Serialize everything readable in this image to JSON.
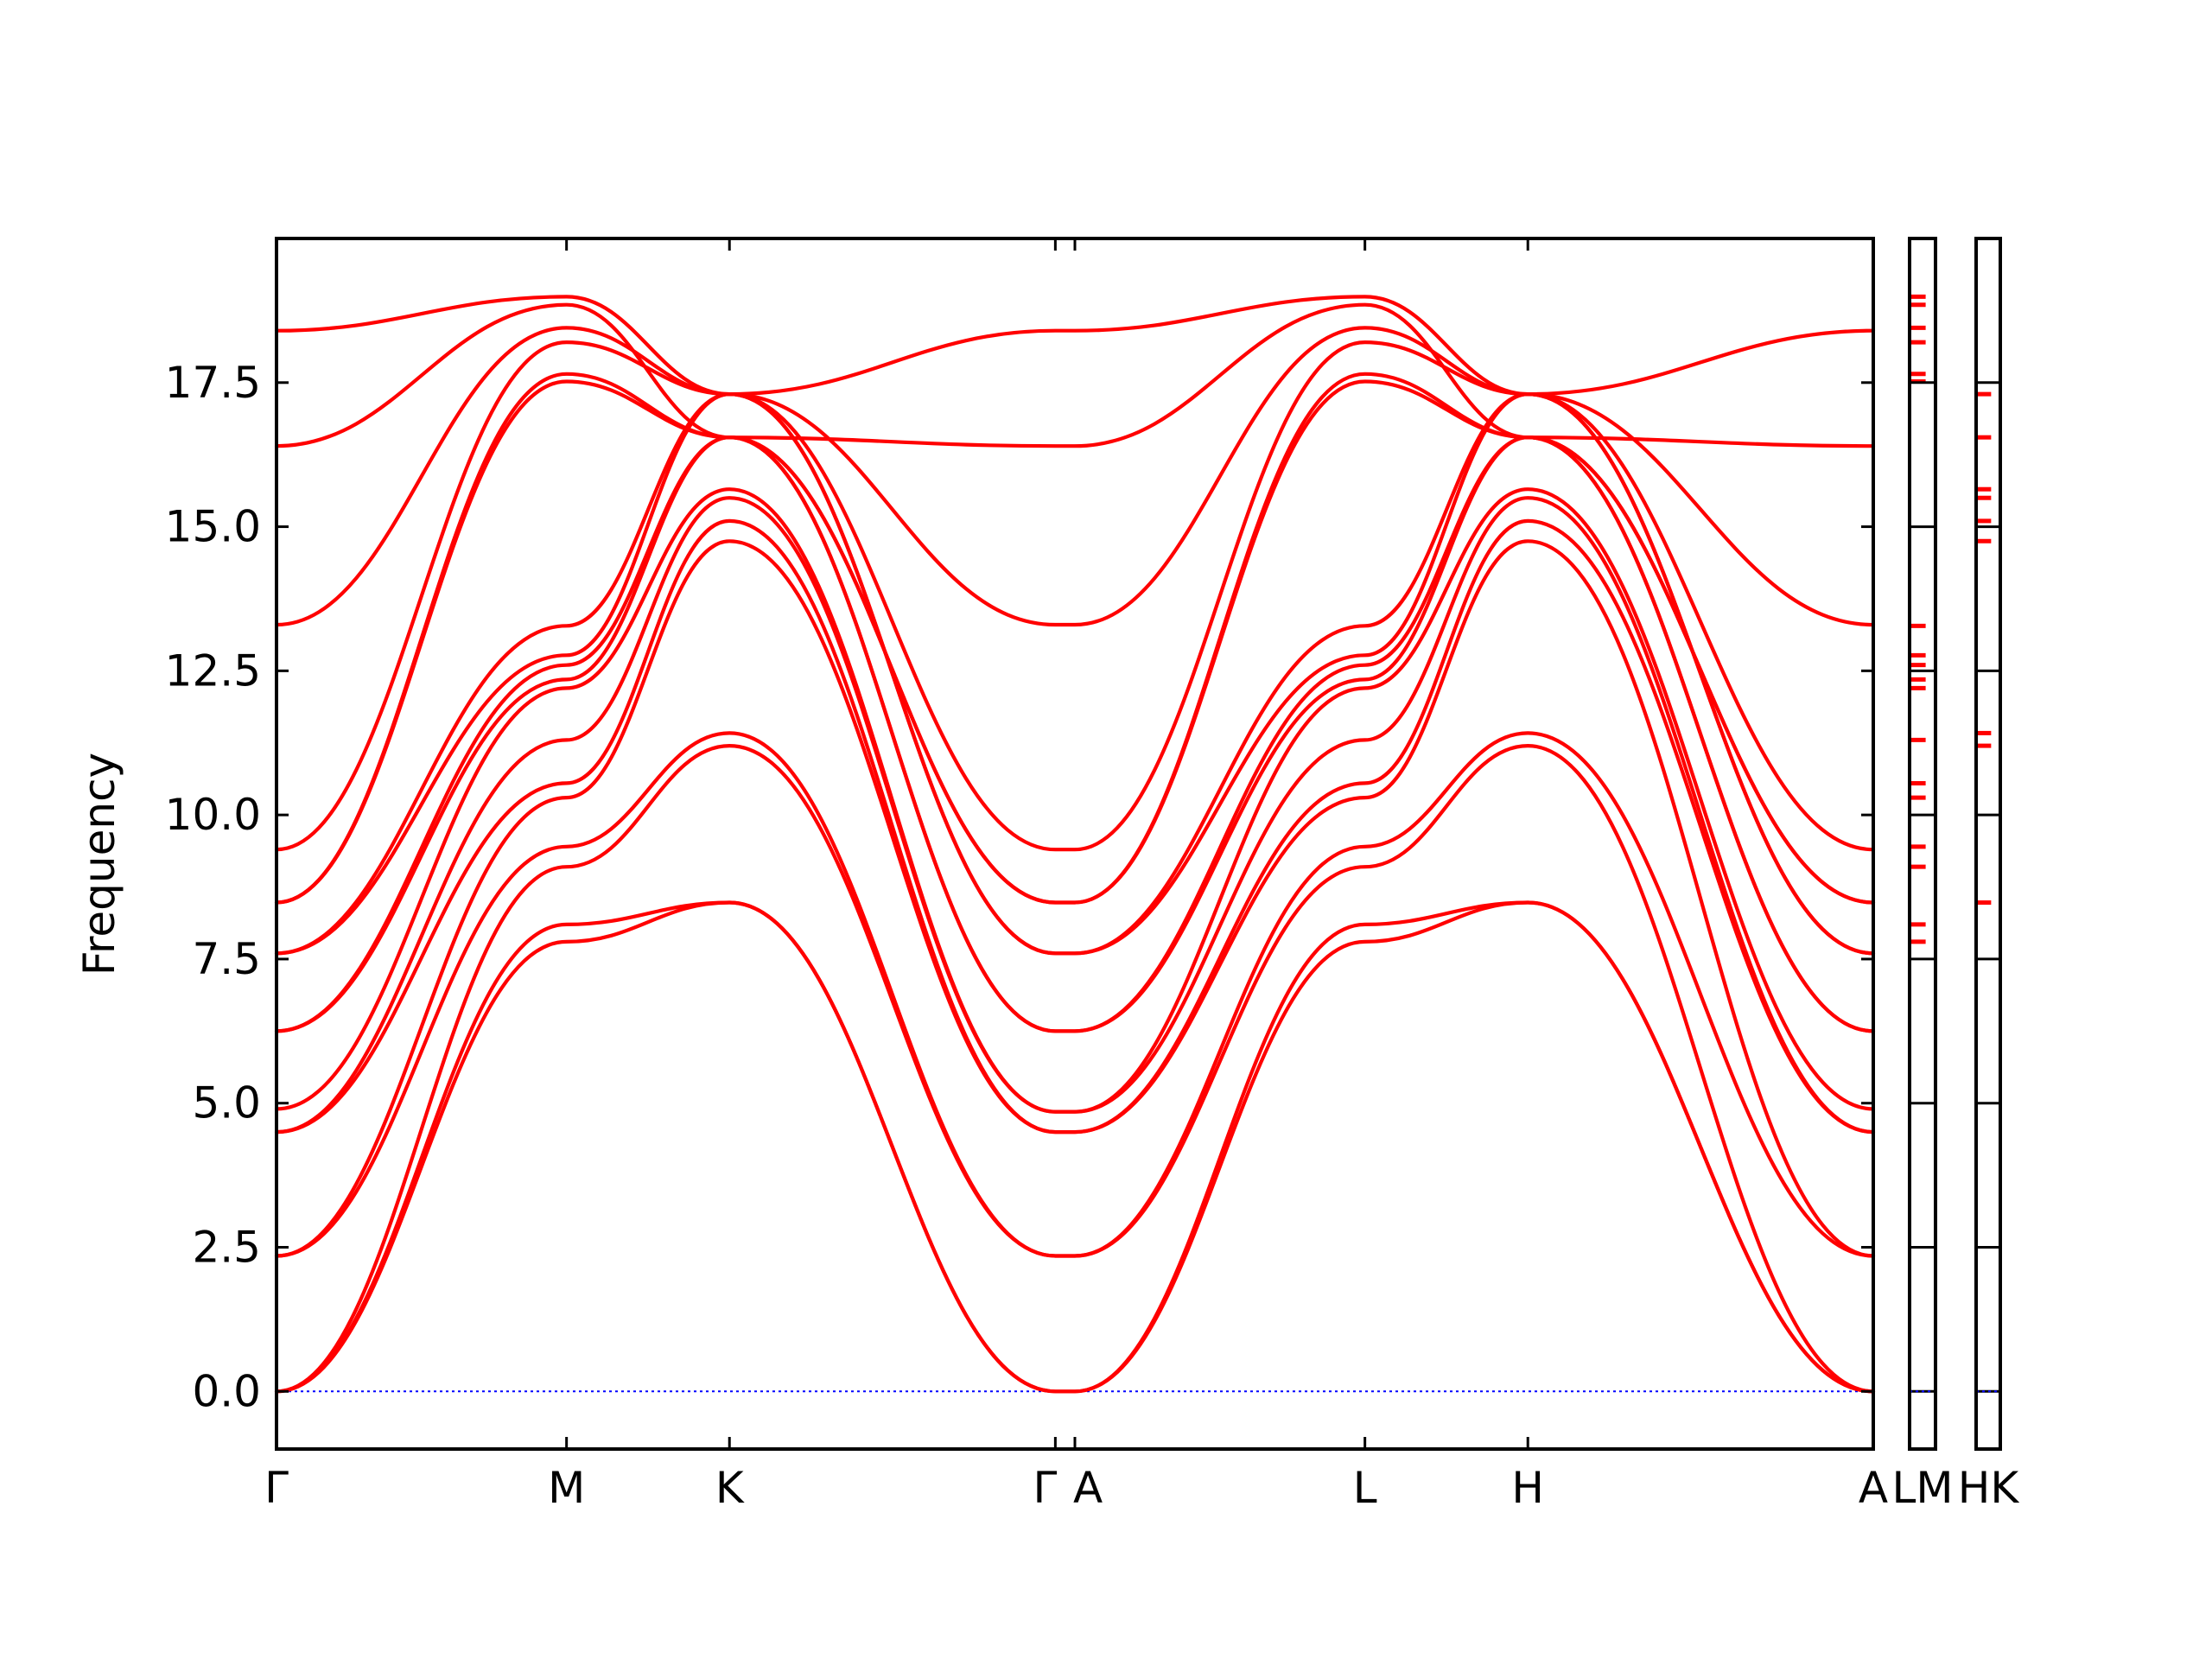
{
  "chart_data": {
    "type": "line",
    "title": "",
    "xlabel": "",
    "ylabel": "Frequency",
    "ylim": [
      -1.0,
      20.0
    ],
    "yticks": [
      "0.0",
      "2.5",
      "5.0",
      "7.5",
      "10.0",
      "12.5",
      "15.0",
      "17.5"
    ],
    "zero_line": 0.0,
    "main_panel": {
      "xlim": [
        0,
        9.8
      ],
      "high_symmetry_points": [
        {
          "label": "Γ",
          "x": 0.0
        },
        {
          "label": "M",
          "x": 1.78
        },
        {
          "label": "K",
          "x": 2.78
        },
        {
          "label": "Γ",
          "x": 4.78
        },
        {
          "label": "A",
          "x": 4.9
        },
        {
          "label": "L",
          "x": 6.68
        },
        {
          "label": "H",
          "x": 7.68
        },
        {
          "label": "A",
          "x": 9.8
        }
      ],
      "segment_x_ends": [
        1.78,
        2.78,
        4.78,
        4.9,
        6.68,
        7.68,
        9.8
      ]
    },
    "side_panels": [
      {
        "tick_label": "LM",
        "frequencies": [
          18.99,
          18.85,
          18.45,
          18.2,
          17.65,
          17.52,
          13.28,
          12.77,
          12.6,
          12.35,
          12.2,
          11.3,
          10.55,
          10.3,
          9.45,
          9.1,
          8.1,
          7.8
        ]
      },
      {
        "tick_label": "HK",
        "frequencies": [
          17.3,
          16.55,
          15.65,
          15.5,
          15.1,
          14.75,
          11.42,
          11.2,
          8.48
        ]
      }
    ],
    "series": [
      {
        "values": [
          [
            0.0,
            0.0
          ],
          [
            1.78,
            7.8
          ],
          [
            2.78,
            8.48
          ],
          [
            4.78,
            0.0
          ],
          [
            4.9,
            0.0
          ],
          [
            6.68,
            7.8
          ],
          [
            7.68,
            8.48
          ],
          [
            9.8,
            0.0
          ]
        ]
      },
      {
        "values": [
          [
            0.0,
            0.0
          ],
          [
            1.78,
            8.1
          ],
          [
            2.78,
            8.48
          ],
          [
            4.78,
            0.0
          ],
          [
            4.9,
            0.0
          ],
          [
            6.68,
            8.1
          ],
          [
            7.68,
            8.48
          ],
          [
            9.8,
            0.0
          ]
        ]
      },
      {
        "values": [
          [
            0.0,
            0.0
          ],
          [
            1.78,
            9.1
          ],
          [
            2.78,
            11.2
          ],
          [
            4.78,
            2.35
          ],
          [
            4.9,
            2.35
          ],
          [
            6.68,
            9.1
          ],
          [
            7.68,
            11.2
          ],
          [
            9.8,
            0.0
          ]
        ]
      },
      {
        "values": [
          [
            0.0,
            2.35
          ],
          [
            1.78,
            9.45
          ],
          [
            2.78,
            11.42
          ],
          [
            4.78,
            2.35
          ],
          [
            4.9,
            2.35
          ],
          [
            6.68,
            9.45
          ],
          [
            7.68,
            11.42
          ],
          [
            9.8,
            2.35
          ]
        ]
      },
      {
        "values": [
          [
            0.0,
            2.35
          ],
          [
            1.78,
            10.3
          ],
          [
            2.78,
            14.75
          ],
          [
            4.78,
            4.5
          ],
          [
            4.9,
            4.5
          ],
          [
            6.68,
            10.3
          ],
          [
            7.68,
            14.75
          ],
          [
            9.8,
            2.35
          ]
        ]
      },
      {
        "values": [
          [
            0.0,
            4.5
          ],
          [
            1.78,
            10.55
          ],
          [
            2.78,
            15.1
          ],
          [
            4.78,
            4.5
          ],
          [
            4.9,
            4.5
          ],
          [
            6.68,
            10.55
          ],
          [
            7.68,
            15.1
          ],
          [
            9.8,
            4.5
          ]
        ]
      },
      {
        "values": [
          [
            0.0,
            4.5
          ],
          [
            1.78,
            11.3
          ],
          [
            2.78,
            15.5
          ],
          [
            4.78,
            4.85
          ],
          [
            4.9,
            4.85
          ],
          [
            6.68,
            11.3
          ],
          [
            7.68,
            15.5
          ],
          [
            9.8,
            4.5
          ]
        ]
      },
      {
        "values": [
          [
            0.0,
            4.9
          ],
          [
            1.78,
            12.2
          ],
          [
            2.78,
            15.65
          ],
          [
            4.78,
            4.85
          ],
          [
            4.9,
            4.85
          ],
          [
            6.68,
            12.2
          ],
          [
            7.68,
            15.65
          ],
          [
            9.8,
            4.9
          ]
        ]
      },
      {
        "values": [
          [
            0.0,
            6.25
          ],
          [
            1.78,
            12.35
          ],
          [
            2.78,
            16.55
          ],
          [
            4.78,
            6.25
          ],
          [
            4.9,
            6.25
          ],
          [
            6.68,
            12.35
          ],
          [
            7.68,
            16.55
          ],
          [
            9.8,
            6.25
          ]
        ]
      },
      {
        "values": [
          [
            0.0,
            6.25
          ],
          [
            1.78,
            12.6
          ],
          [
            2.78,
            16.55
          ],
          [
            4.78,
            6.25
          ],
          [
            4.9,
            6.25
          ],
          [
            6.68,
            12.6
          ],
          [
            7.68,
            16.55
          ],
          [
            9.8,
            6.25
          ]
        ]
      },
      {
        "values": [
          [
            0.0,
            7.6
          ],
          [
            1.78,
            12.77
          ],
          [
            2.78,
            17.3
          ],
          [
            4.78,
            7.6
          ],
          [
            4.9,
            7.6
          ],
          [
            6.68,
            12.77
          ],
          [
            7.68,
            17.3
          ],
          [
            9.8,
            7.6
          ]
        ]
      },
      {
        "values": [
          [
            0.0,
            7.6
          ],
          [
            1.78,
            13.28
          ],
          [
            2.78,
            17.3
          ],
          [
            4.78,
            7.6
          ],
          [
            4.9,
            7.6
          ],
          [
            6.68,
            13.28
          ],
          [
            7.68,
            17.3
          ],
          [
            9.8,
            7.6
          ]
        ]
      },
      {
        "values": [
          [
            0.0,
            8.48
          ],
          [
            1.78,
            17.52
          ],
          [
            2.78,
            16.55
          ],
          [
            4.78,
            8.48
          ],
          [
            4.9,
            8.48
          ],
          [
            6.68,
            17.52
          ],
          [
            7.68,
            16.55
          ],
          [
            9.8,
            8.48
          ]
        ]
      },
      {
        "values": [
          [
            0.0,
            8.48
          ],
          [
            1.78,
            17.65
          ],
          [
            2.78,
            16.55
          ],
          [
            4.78,
            8.48
          ],
          [
            4.9,
            8.48
          ],
          [
            6.68,
            17.65
          ],
          [
            7.68,
            16.55
          ],
          [
            9.8,
            8.48
          ]
        ]
      },
      {
        "values": [
          [
            0.0,
            9.4
          ],
          [
            1.78,
            18.2
          ],
          [
            2.78,
            17.3
          ],
          [
            4.78,
            9.4
          ],
          [
            4.9,
            9.4
          ],
          [
            6.68,
            18.2
          ],
          [
            7.68,
            17.3
          ],
          [
            9.8,
            9.4
          ]
        ]
      },
      {
        "values": [
          [
            0.0,
            13.3
          ],
          [
            1.78,
            18.45
          ],
          [
            2.78,
            17.3
          ],
          [
            4.78,
            13.3
          ],
          [
            4.9,
            13.3
          ],
          [
            6.68,
            18.45
          ],
          [
            7.68,
            17.3
          ],
          [
            9.8,
            13.3
          ]
        ]
      },
      {
        "values": [
          [
            0.0,
            16.4
          ],
          [
            1.78,
            18.85
          ],
          [
            2.78,
            16.55
          ],
          [
            4.78,
            16.4
          ],
          [
            4.9,
            16.4
          ],
          [
            6.68,
            18.85
          ],
          [
            7.68,
            16.55
          ],
          [
            9.8,
            16.4
          ]
        ]
      },
      {
        "values": [
          [
            0.0,
            18.4
          ],
          [
            1.78,
            18.99
          ],
          [
            2.78,
            17.3
          ],
          [
            4.78,
            18.4
          ],
          [
            4.9,
            18.4
          ],
          [
            6.68,
            18.99
          ],
          [
            7.68,
            17.3
          ],
          [
            9.8,
            18.4
          ]
        ]
      }
    ]
  }
}
